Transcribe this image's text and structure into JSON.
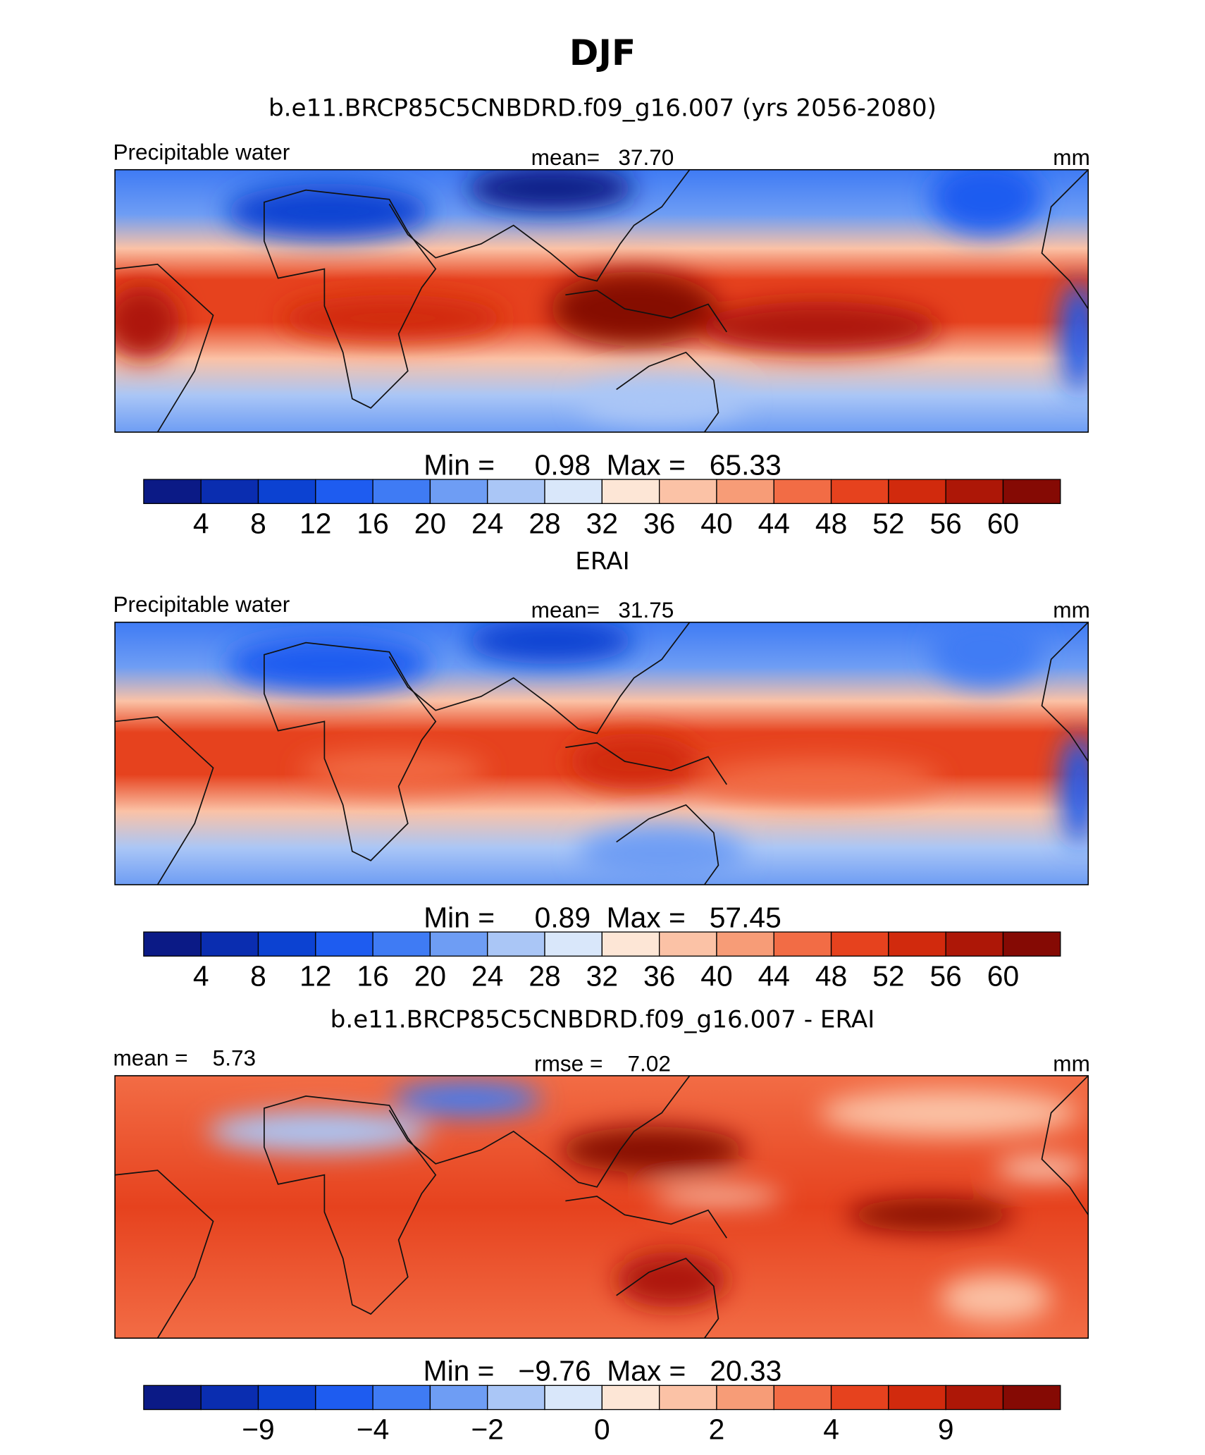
{
  "title": "DJF",
  "panels": [
    {
      "title": "b.e11.BRCP85C5CNBDRD.f09_g16.007 (yrs 2056-2080)",
      "left": "Precipitable water",
      "center": "mean=   37.70",
      "units": "mm",
      "minmax": "Min =     0.98  Max =   65.33",
      "colorbar": {
        "colors": [
          "#0b1a86",
          "#0a2db0",
          "#0c42d2",
          "#1e5cf0",
          "#3f7bf4",
          "#6e9df4",
          "#aac6f6",
          "#d9e7fa",
          "#fde6d6",
          "#fbc2a6",
          "#f79c77",
          "#f26c45",
          "#e6421e",
          "#d12a0d",
          "#ad1707",
          "#850a04"
        ],
        "labels": [
          "4",
          "8",
          "12",
          "16",
          "20",
          "24",
          "28",
          "32",
          "36",
          "40",
          "44",
          "48",
          "52",
          "56",
          "60"
        ]
      }
    },
    {
      "title": "ERAI",
      "left": "Precipitable water",
      "center": "mean=   31.75",
      "units": "mm",
      "minmax": "Min =     0.89  Max =   57.45",
      "colorbar": {
        "colors": [
          "#0b1a86",
          "#0a2db0",
          "#0c42d2",
          "#1e5cf0",
          "#3f7bf4",
          "#6e9df4",
          "#aac6f6",
          "#d9e7fa",
          "#fde6d6",
          "#fbc2a6",
          "#f79c77",
          "#f26c45",
          "#e6421e",
          "#d12a0d",
          "#ad1707",
          "#850a04"
        ],
        "labels": [
          "4",
          "8",
          "12",
          "16",
          "20",
          "24",
          "28",
          "32",
          "36",
          "40",
          "44",
          "48",
          "52",
          "56",
          "60"
        ]
      }
    },
    {
      "title": "b.e11.BRCP85C5CNBDRD.f09_g16.007 - ERAI",
      "left": "mean =    5.73",
      "center": "rmse =    7.02",
      "units": "mm",
      "minmax": "Min =   −9.76  Max =   20.33",
      "colorbar": {
        "colors": [
          "#0b1a86",
          "#0a2db0",
          "#0c42d2",
          "#1e5cf0",
          "#3f7bf4",
          "#6e9df4",
          "#aac6f6",
          "#d9e7fa",
          "#fde6d6",
          "#fbc2a6",
          "#f79c77",
          "#f26c45",
          "#e6421e",
          "#d12a0d",
          "#ad1707",
          "#850a04"
        ],
        "labels": [
          null,
          "−9",
          null,
          "−4",
          null,
          "−2",
          null,
          "0",
          null,
          "2",
          null,
          "4",
          null,
          "9",
          null
        ]
      }
    }
  ]
}
